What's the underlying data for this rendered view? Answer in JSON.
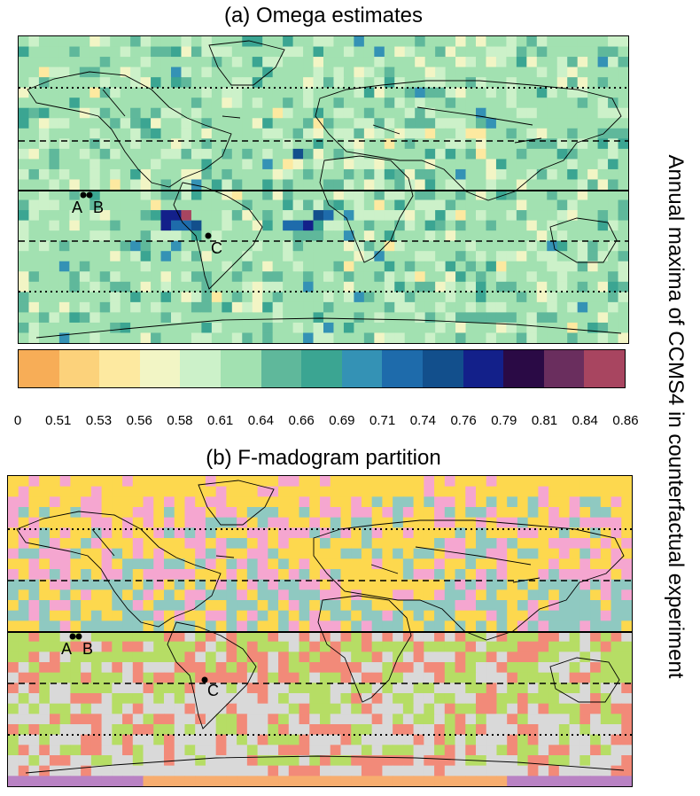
{
  "panel_a": {
    "title": "(a) Omega estimates",
    "points": [
      "A",
      "B",
      "C"
    ]
  },
  "colorbar": {
    "colors": [
      "#f7ad57",
      "#fcd27b",
      "#fde9a0",
      "#f2f5c5",
      "#ccf1c9",
      "#a2e1b1",
      "#5fb89b",
      "#3ba592",
      "#3492b5",
      "#1e6bab",
      "#124f8c",
      "#13208a",
      "#2a0a45",
      "#6a2e5e",
      "#a84560"
    ],
    "labels": [
      "0",
      "0.51",
      "0.53",
      "0.56",
      "0.58",
      "0.61",
      "0.64",
      "0.66",
      "0.69",
      "0.71",
      "0.74",
      "0.76",
      "0.79",
      "0.81",
      "0.84",
      "0.86"
    ]
  },
  "panel_b": {
    "title": "(b) F-madogram partition",
    "points": [
      "A",
      "B",
      "C"
    ],
    "cluster_colors": [
      "#fdd84e",
      "#f5a6d0",
      "#8fc9c1",
      "#b6dd65",
      "#f28a79",
      "#d9d9d9",
      "#b982c3",
      "#f7ad6f"
    ]
  },
  "side_label": "Annual maxima of CCMS4 in counterfactual experiment"
}
